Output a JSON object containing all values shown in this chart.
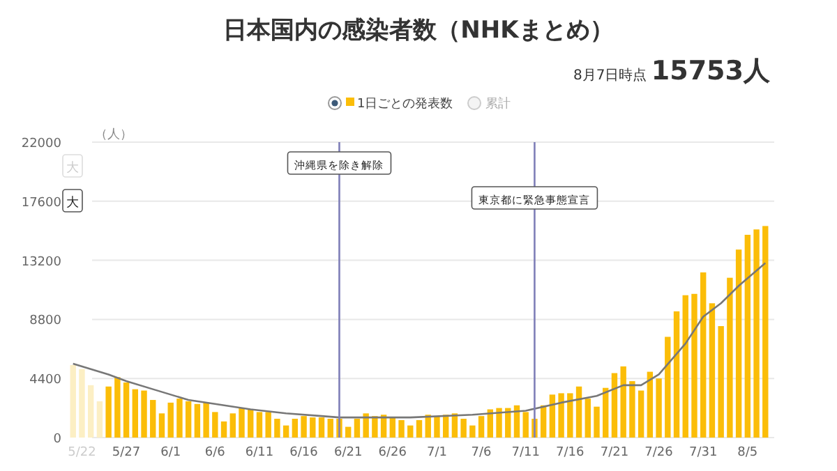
{
  "chart_data": {
    "type": "bar",
    "title": "日本国内の感染者数（NHKまとめ）",
    "subtitle": "8月7日時点 15753人",
    "ylabel": "（人）",
    "x": [
      "--05-21",
      "--05-22",
      "--05-23",
      "--05-24",
      "--05-25",
      "--05-26",
      "--05-27",
      "--05-28",
      "--05-29",
      "--05-30",
      "--05-31",
      "--06-01",
      "--06-02",
      "--06-03",
      "--06-04",
      "--06-05",
      "--06-06",
      "--06-07",
      "--06-08",
      "--06-09",
      "--06-10",
      "--06-11",
      "--06-12",
      "--06-13",
      "--06-14",
      "--06-15",
      "--06-16",
      "--06-17",
      "--06-18",
      "--06-19",
      "--06-20",
      "--06-21",
      "--06-22",
      "--06-23",
      "--06-24",
      "--06-25",
      "--06-26",
      "--06-27",
      "--06-28",
      "--06-29",
      "--06-30",
      "--07-01",
      "--07-02",
      "--07-03",
      "--07-04",
      "--07-05",
      "--07-06",
      "--07-07",
      "--07-08",
      "--07-09",
      "--07-10",
      "--07-11",
      "--07-12",
      "--07-13",
      "--07-14",
      "--07-15",
      "--07-16",
      "--07-17",
      "--07-18",
      "--07-19",
      "--07-20",
      "--07-21",
      "--07-22",
      "--07-23",
      "--07-24",
      "--07-25",
      "--07-26",
      "--07-27",
      "--07-28",
      "--07-29",
      "--07-30",
      "--07-31",
      "--08-01",
      "--08-02",
      "--08-03",
      "--08-04",
      "--08-05",
      "--08-06",
      "--08-07"
    ],
    "series": [
      {
        "name": "1日ごとの発表数",
        "color": "#fbbd08",
        "colors": [
          "#fcefc4",
          "#fcefc4",
          "#fcefc4",
          "#fcefc4",
          "#fbbd08",
          "#fbbd08",
          "#fbbd08",
          "#fbbd08",
          "#fbbd08",
          "#fbbd08",
          "#fbbd08",
          "#fbbd08",
          "#fbbd08",
          "#fbbd08",
          "#fbbd08",
          "#fbbd08",
          "#fbbd08",
          "#fbbd08",
          "#fbbd08",
          "#fbbd08",
          "#fbbd08",
          "#fbbd08",
          "#fbbd08",
          "#fbbd08",
          "#fbbd08",
          "#fbbd08",
          "#fbbd08",
          "#fbbd08",
          "#fbbd08",
          "#fbbd08",
          "#fbbd08",
          "#fbbd08",
          "#fbbd08",
          "#fbbd08",
          "#fbbd08",
          "#fbbd08",
          "#fbbd08",
          "#fbbd08",
          "#fbbd08",
          "#fbbd08",
          "#fbbd08",
          "#fbbd08",
          "#fbbd08",
          "#fbbd08",
          "#fbbd08",
          "#fbbd08",
          "#fbbd08",
          "#fbbd08",
          "#fbbd08",
          "#fbbd08",
          "#fbbd08",
          "#fbbd08",
          "#fbbd08",
          "#fbbd08",
          "#fbbd08",
          "#fbbd08",
          "#fbbd08",
          "#fbbd08",
          "#fbbd08",
          "#fbbd08",
          "#fbbd08",
          "#fbbd08",
          "#fbbd08",
          "#fbbd08",
          "#fbbd08",
          "#fbbd08",
          "#fbbd08",
          "#fbbd08",
          "#fbbd08",
          "#fbbd08",
          "#fbbd08",
          "#fbbd08",
          "#fbbd08",
          "#fbbd08",
          "#fbbd08",
          "#fbbd08",
          "#fbbd08",
          "#fbbd08",
          "#fbbd08"
        ],
        "values": [
          5400,
          5100,
          3900,
          2700,
          3800,
          4500,
          4100,
          3600,
          3500,
          2800,
          1800,
          2600,
          2900,
          2700,
          2500,
          2600,
          1900,
          1200,
          1800,
          2200,
          2100,
          1900,
          1900,
          1400,
          900,
          1400,
          1600,
          1500,
          1500,
          1400,
          1400,
          800,
          1400,
          1800,
          1600,
          1700,
          1500,
          1300,
          900,
          1300,
          1700,
          1600,
          1700,
          1800,
          1400,
          900,
          1600,
          2100,
          2200,
          2200,
          2400,
          1900,
          1400,
          2400,
          3200,
          3300,
          3300,
          3800,
          2900,
          2300,
          3700,
          4800,
          5300,
          4200,
          3500,
          4900,
          4400,
          7500,
          9400,
          10600,
          10700,
          12300,
          10000,
          8300,
          11900,
          14000,
          15100,
          15500,
          15753
        ]
      },
      {
        "type": "line",
        "color": "#777777",
        "x": [
          "--05-21",
          "--05-25",
          "--05-27",
          "--05-30",
          "--06-03",
          "--06-06",
          "--06-10",
          "--06-14",
          "--06-18",
          "--06-20",
          "--06-25",
          "--06-28",
          "--07-05",
          "--07-11",
          "--07-15",
          "--07-19",
          "--07-22",
          "--07-24",
          "--07-26",
          "--07-29",
          "--07-31",
          "--08-02",
          "--08-04",
          "--08-07"
        ],
        "values": [
          5500,
          4700,
          4200,
          3600,
          2800,
          2500,
          2100,
          1800,
          1600,
          1500,
          1500,
          1500,
          1700,
          2000,
          2600,
          3100,
          3900,
          3900,
          4700,
          7000,
          9000,
          10000,
          11300,
          13000
        ]
      }
    ],
    "xlim": [
      "--05-20",
      "--08-08"
    ],
    "xticks": [
      {
        "value": "--05-22",
        "label": "5/22"
      },
      {
        "value": "--05-27",
        "label": "5/27"
      },
      {
        "value": "--06-01",
        "label": "6/1"
      },
      {
        "value": "--06-06",
        "label": "6/6"
      },
      {
        "value": "--06-11",
        "label": "6/11"
      },
      {
        "value": "--06-16",
        "label": "6/16"
      },
      {
        "value": "--06-21",
        "label": "6/21"
      },
      {
        "value": "--06-26",
        "label": "6/26"
      },
      {
        "value": "--07-01",
        "label": "7/1"
      },
      {
        "value": "--07-06",
        "label": "7/6"
      },
      {
        "value": "--07-11",
        "label": "7/11"
      },
      {
        "value": "--07-16",
        "label": "7/16"
      },
      {
        "value": "--07-21",
        "label": "7/21"
      },
      {
        "value": "--07-26",
        "label": "7/26"
      },
      {
        "value": "--07-31",
        "label": "7/31"
      },
      {
        "value": "--08-05",
        "label": "8/5"
      }
    ],
    "ylim": [
      0,
      22000
    ],
    "yticks": [
      0,
      4400,
      8800,
      13200,
      17600,
      22000
    ],
    "ref_lines": [
      {
        "axis": "x",
        "value": "--06-20",
        "label": "沖縄県を除き解除",
        "color": "#7e7eb8"
      },
      {
        "axis": "x",
        "value": "--07-12",
        "label": "東京都に緊急事態宣言",
        "color": "#7e7eb8"
      }
    ],
    "annotations": [
      "大",
      "大",
      "累計"
    ],
    "grid": "y",
    "legend": "top"
  }
}
